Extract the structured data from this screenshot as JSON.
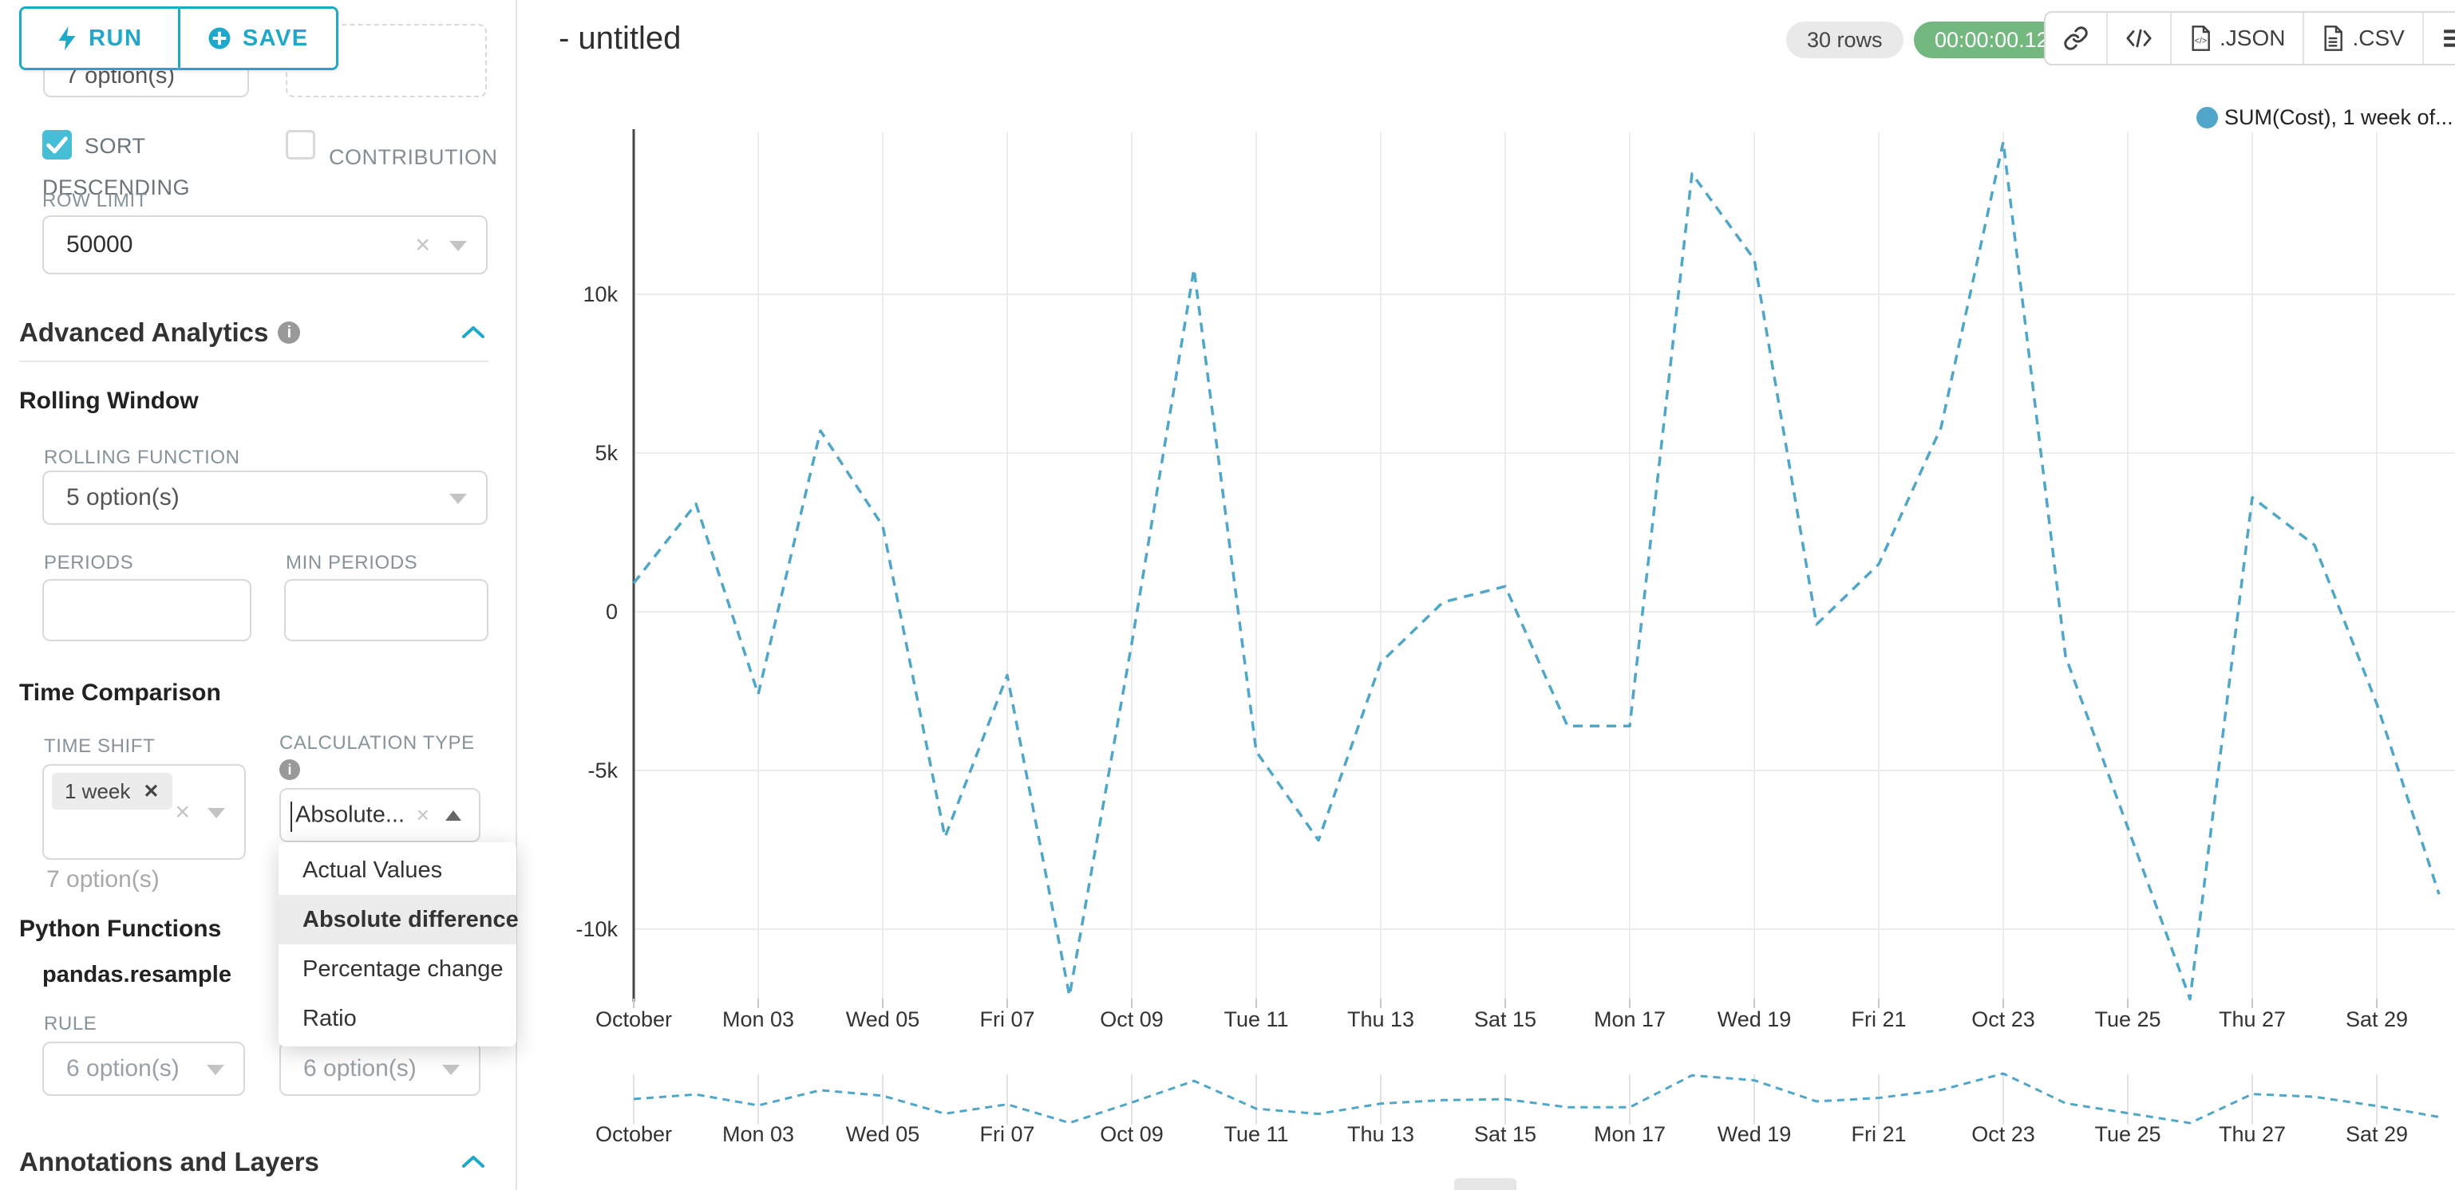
{
  "app": {
    "accent": "#1FA8C9",
    "checkbox_teal": "#45BED6",
    "timer_green": "#73b87e"
  },
  "toolbar": {
    "run_label": "RUN",
    "save_label": "SAVE"
  },
  "sidebar": {
    "hidden_select_value": "7 option(s)",
    "sort_descending_line1": "SORT",
    "sort_descending_line2": "DESCENDING",
    "contribution_label": "CONTRIBUTION",
    "row_limit_label": "ROW LIMIT",
    "row_limit_value": "50000",
    "advanced_analytics_title": "Advanced Analytics",
    "rolling_window_title": "Rolling Window",
    "rolling_function_label": "ROLLING FUNCTION",
    "rolling_function_value": "5 option(s)",
    "periods_label": "PERIODS",
    "min_periods_label": "MIN PERIODS",
    "time_comparison_title": "Time Comparison",
    "time_shift_label": "TIME SHIFT",
    "time_shift_tag": "1 week",
    "time_shift_hint": "7 option(s)",
    "calculation_type_label": "CALCULATION TYPE",
    "calculation_type_value": "Absolute...",
    "calculation_dropdown": {
      "options": [
        "Actual Values",
        "Absolute difference",
        "Percentage change",
        "Ratio"
      ],
      "selected": "Absolute difference"
    },
    "python_functions_title": "Python Functions",
    "python_function_name": "pandas.resample",
    "rule_label": "RULE",
    "rule_value": "6 option(s)",
    "method_value": "6 option(s)",
    "annotations_title": "Annotations and Layers"
  },
  "header": {
    "title": "- untitled",
    "rows_badge": "30 rows",
    "timer_badge": "00:00:00.12",
    "export_json_label": ".JSON",
    "export_csv_label": ".CSV"
  },
  "chart_data": {
    "type": "line",
    "line_style": "dashed",
    "color": "#4FA6C8",
    "legend": "SUM(Cost), 1 week of...",
    "legend_position": "top-right",
    "grid": true,
    "ylim": [
      -15100,
      15100
    ],
    "y_tick_values": [
      10000,
      5000,
      0,
      -5000,
      -10000
    ],
    "y_tick_labels": [
      "10k",
      "5k",
      "0",
      "-5k",
      "-10k"
    ],
    "x_tick_labels": [
      "October",
      "Mon 03",
      "Wed 05",
      "Fri 07",
      "Oct 09",
      "Tue 11",
      "Thu 13",
      "Sat 15",
      "Mon 17",
      "Wed 19",
      "Fri 21",
      "Oct 23",
      "Tue 25",
      "Thu 27",
      "Sat 29"
    ],
    "x_ticks_every_n_points": 2,
    "series": [
      {
        "name": "SUM(Cost), 1 week of...",
        "values": [
          900,
          3400,
          -2600,
          5700,
          2700,
          -7100,
          -2000,
          -12100,
          -1000,
          10800,
          -4400,
          -7200,
          -1600,
          300,
          800,
          -3600,
          -3600,
          13800,
          11100,
          -400,
          1500,
          5800,
          14800,
          -1400,
          -6800,
          -12200,
          3600,
          2100,
          -2900,
          -8900
        ]
      }
    ],
    "mini_chart": {
      "shows_same_series": true,
      "x_tick_labels_repeated": true
    }
  }
}
